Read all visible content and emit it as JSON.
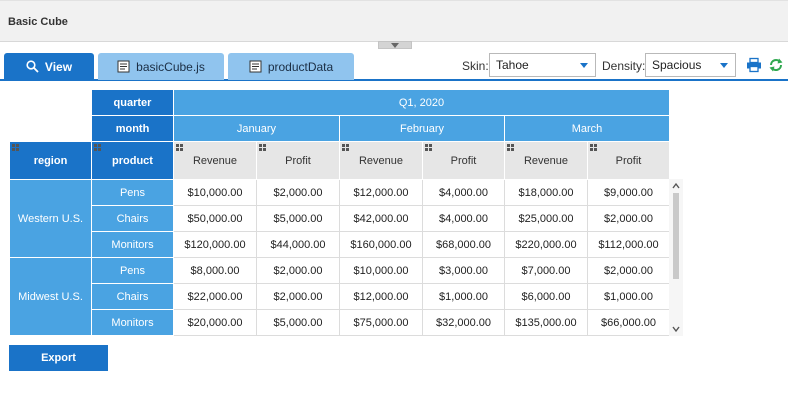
{
  "window": {
    "title": "Basic Cube"
  },
  "tabs": [
    {
      "label": "View",
      "icon": "search-icon"
    },
    {
      "label": "basicCube.js",
      "icon": "document-icon"
    },
    {
      "label": "productData",
      "icon": "document-icon"
    }
  ],
  "controls": {
    "skin_label": "Skin:",
    "skin_value": "Tahoe",
    "density_label": "Density:",
    "density_value": "Spacious",
    "print_icon": "printer-icon",
    "refresh_icon": "refresh-icon"
  },
  "colors": {
    "accent": "#1a73c8",
    "header_light": "#4aa3e2",
    "tab_inactive": "#90c4ee",
    "refresh": "#2fa84f"
  },
  "cube": {
    "quarter_label": "quarter",
    "quarter_value": "Q1, 2020",
    "month_label": "month",
    "months": [
      "January",
      "February",
      "March"
    ],
    "region_label": "region",
    "product_label": "product",
    "measures": [
      "Revenue",
      "Profit",
      "Revenue",
      "Profit",
      "Revenue",
      "Profit"
    ],
    "regions": [
      {
        "name": "Western U.S.",
        "rows": [
          {
            "product": "Pens",
            "values": [
              "$10,000.00",
              "$2,000.00",
              "$12,000.00",
              "$4,000.00",
              "$18,000.00",
              "$9,000.00"
            ]
          },
          {
            "product": "Chairs",
            "values": [
              "$50,000.00",
              "$5,000.00",
              "$42,000.00",
              "$4,000.00",
              "$25,000.00",
              "$2,000.00"
            ]
          },
          {
            "product": "Monitors",
            "values": [
              "$120,000.00",
              "$44,000.00",
              "$160,000.00",
              "$68,000.00",
              "$220,000.00",
              "$112,000.00"
            ]
          }
        ]
      },
      {
        "name": "Midwest U.S.",
        "rows": [
          {
            "product": "Pens",
            "values": [
              "$8,000.00",
              "$2,000.00",
              "$10,000.00",
              "$3,000.00",
              "$7,000.00",
              "$2,000.00"
            ]
          },
          {
            "product": "Chairs",
            "values": [
              "$22,000.00",
              "$2,000.00",
              "$12,000.00",
              "$1,000.00",
              "$6,000.00",
              "$1,000.00"
            ]
          },
          {
            "product": "Monitors",
            "values": [
              "$20,000.00",
              "$5,000.00",
              "$75,000.00",
              "$32,000.00",
              "$135,000.00",
              "$66,000.00"
            ]
          }
        ]
      }
    ]
  },
  "export_label": "Export"
}
